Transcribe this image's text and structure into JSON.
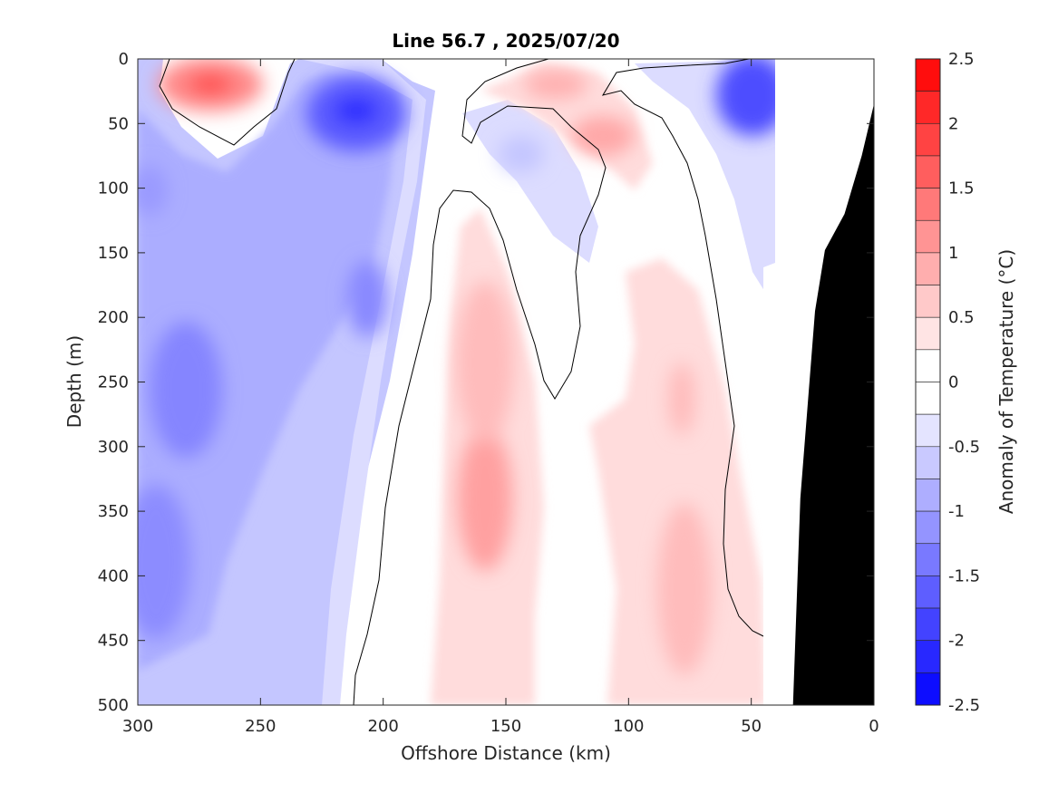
{
  "chart_data": {
    "type": "heatmap",
    "title": "Line 56.7 , 2025/07/20",
    "xlabel": "Offshore Distance (km)",
    "ylabel": "Depth (m)",
    "colorbar_label": "Anomaly of Temperature (°C)",
    "xlim": [
      300,
      0
    ],
    "ylim": [
      0,
      500
    ],
    "x_reversed": true,
    "y_reversed": true,
    "x_ticks": [
      300,
      250,
      200,
      150,
      100,
      50,
      0
    ],
    "y_ticks": [
      0,
      50,
      100,
      150,
      200,
      250,
      300,
      350,
      400,
      450,
      500
    ],
    "colorbar": {
      "range": [
        -2.5,
        2.5
      ],
      "step": 0.25,
      "ticks": [
        2.5,
        2,
        1.5,
        1,
        0.5,
        0,
        -0.5,
        -1,
        -1.5,
        -2,
        -2.5
      ],
      "tick_labels": [
        "2.5",
        "2",
        "1.5",
        "1",
        "0.5",
        "0",
        "-0.5",
        "-1",
        "-1.5",
        "-2",
        "-2.5"
      ],
      "colormap": "blue-white-red",
      "cold_color": "#0000ff",
      "neutral_color": "#ffffff",
      "warm_color": "#ff0000"
    },
    "grid": false,
    "bathymetry_color": "#000000",
    "bathymetry_profile": [
      {
        "x": 0,
        "depth": 35
      },
      {
        "x": 5,
        "depth": 75
      },
      {
        "x": 12,
        "depth": 120
      },
      {
        "x": 20,
        "depth": 148
      },
      {
        "x": 24,
        "depth": 195
      },
      {
        "x": 30,
        "depth": 340
      },
      {
        "x": 33,
        "depth": 500
      }
    ],
    "data_coverage_edge": [
      {
        "depth": 0,
        "x": 40
      },
      {
        "depth": 230,
        "x": 40
      },
      {
        "depth": 240,
        "x": 45
      },
      {
        "depth": 500,
        "x": 45
      }
    ],
    "anomaly_features": [
      {
        "kind": "warm",
        "x": 270,
        "depth": 20,
        "anomaly": 1.5
      },
      {
        "kind": "warm",
        "x": 127,
        "depth": 20,
        "anomaly": 1.0
      },
      {
        "kind": "warm",
        "x": 110,
        "depth": 60,
        "anomaly": 1.0
      },
      {
        "kind": "warm",
        "x": 158,
        "depth": 340,
        "anomaly": 1.0
      },
      {
        "kind": "warm",
        "x": 158,
        "depth": 250,
        "anomaly": 0.75
      },
      {
        "kind": "warm",
        "x": 80,
        "depth": 420,
        "anomaly": 0.75
      },
      {
        "kind": "warm",
        "x": 75,
        "depth": 280,
        "anomaly": 0.5
      },
      {
        "kind": "cold",
        "x": 210,
        "depth": 40,
        "anomaly": -2.0
      },
      {
        "kind": "cold",
        "x": 40,
        "depth": 30,
        "anomaly": -2.0
      },
      {
        "kind": "cold",
        "x": 210,
        "depth": 200,
        "anomaly": -1.25
      },
      {
        "kind": "cold",
        "x": 285,
        "depth": 260,
        "anomaly": -1.25
      },
      {
        "kind": "cold",
        "x": 295,
        "depth": 400,
        "anomaly": -1.25
      },
      {
        "kind": "cold",
        "x": 295,
        "depth": 100,
        "anomaly": -1.0
      }
    ]
  }
}
